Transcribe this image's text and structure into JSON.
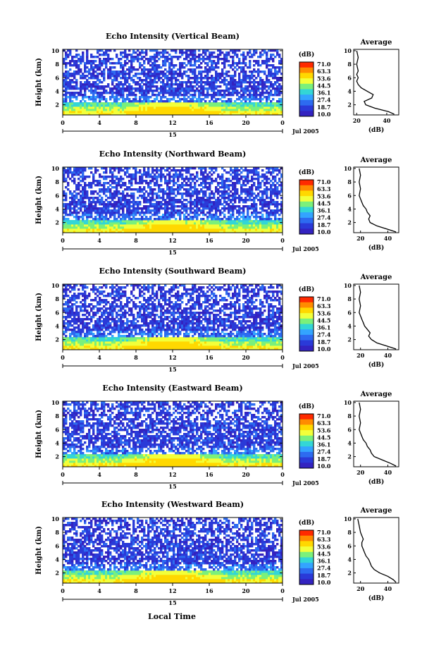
{
  "figure": {
    "xlabel_bottom": "Local Time",
    "date_label": "Jul 2005",
    "day_label": "15"
  },
  "colorbar": {
    "unit": "(dB)",
    "ticks": [
      "71.0",
      "63.3",
      "53.6",
      "44.5",
      "36.1",
      "27.4",
      "18.7",
      "10.0"
    ],
    "colors": [
      "#ff2a00",
      "#ff8c00",
      "#ffd800",
      "#f2ff3a",
      "#7bf07b",
      "#33d6d6",
      "#33a4ff",
      "#2d6bf0",
      "#2a3ad8",
      "#3323c0"
    ]
  },
  "chart_data": [
    {
      "type": "heatmap",
      "title": "Echo Intensity (Vertical Beam)",
      "xlabel": "",
      "ylabel": "Height (km)",
      "xticks": [
        "0",
        "4",
        "8",
        "12",
        "16",
        "20",
        "0"
      ],
      "yticks": [
        "2",
        "4",
        "6",
        "8",
        "10"
      ],
      "xlim": [
        0,
        24
      ],
      "ylim": [
        0.5,
        10.2
      ],
      "z_range": [
        10.0,
        71.0
      ],
      "profile": {
        "title": "Average",
        "xlabel": "(dB)",
        "xticks": [
          "20",
          "40"
        ],
        "xlim": [
          18,
          48
        ],
        "height": [
          0.6,
          1.0,
          1.5,
          2.0,
          2.5,
          3.0,
          3.5,
          4.0,
          4.5,
          5.0,
          5.5,
          6.0,
          6.5,
          7.0,
          8.0,
          9.0,
          10.0
        ],
        "value": [
          45,
          41,
          32,
          26,
          25,
          30,
          31,
          27,
          23,
          21,
          20,
          21,
          20,
          21,
          20,
          21,
          20
        ]
      }
    },
    {
      "type": "heatmap",
      "title": "Echo Intensity (Northward Beam)",
      "xlabel": "",
      "ylabel": "Height (km)",
      "xticks": [
        "0",
        "4",
        "8",
        "12",
        "16",
        "20",
        "0"
      ],
      "yticks": [
        "2",
        "4",
        "6",
        "8",
        "10"
      ],
      "xlim": [
        0,
        24
      ],
      "ylim": [
        0.5,
        10.2
      ],
      "z_range": [
        10.0,
        71.0
      ],
      "profile": {
        "title": "Average",
        "xlabel": "(dB)",
        "xticks": [
          "20",
          "40"
        ],
        "xlim": [
          15,
          48
        ],
        "height": [
          0.6,
          1.0,
          1.5,
          2.0,
          2.5,
          3.0,
          3.5,
          4.0,
          4.5,
          5.0,
          5.5,
          6.0,
          7.0,
          8.0,
          9.0,
          10.0
        ],
        "value": [
          46,
          40,
          32,
          27,
          26,
          27,
          25,
          24,
          22,
          21,
          20,
          19,
          20,
          19,
          20,
          19
        ]
      }
    },
    {
      "type": "heatmap",
      "title": "Echo Intensity (Southward Beam)",
      "xlabel": "",
      "ylabel": "Height (km)",
      "xticks": [
        "0",
        "4",
        "8",
        "12",
        "16",
        "20",
        "0"
      ],
      "yticks": [
        "2",
        "4",
        "6",
        "8",
        "10"
      ],
      "xlim": [
        0,
        24
      ],
      "ylim": [
        0.5,
        10.2
      ],
      "z_range": [
        10.0,
        71.0
      ],
      "profile": {
        "title": "Average",
        "xlabel": "(dB)",
        "xticks": [
          "20",
          "40"
        ],
        "xlim": [
          15,
          48
        ],
        "height": [
          0.6,
          1.0,
          1.5,
          2.0,
          2.5,
          3.0,
          3.5,
          4.0,
          4.5,
          5.0,
          5.5,
          6.0,
          7.0,
          8.0,
          9.0,
          10.0
        ],
        "value": [
          46,
          40,
          32,
          28,
          26,
          27,
          25,
          23,
          22,
          21,
          20,
          19,
          20,
          19,
          20,
          19
        ]
      }
    },
    {
      "type": "heatmap",
      "title": "Echo Intensity (Eastward Beam)",
      "xlabel": "",
      "ylabel": "Height (km)",
      "xticks": [
        "0",
        "4",
        "8",
        "12",
        "16",
        "20",
        "0"
      ],
      "yticks": [
        "2",
        "4",
        "6",
        "8",
        "10"
      ],
      "xlim": [
        0,
        24
      ],
      "ylim": [
        0.5,
        10.2
      ],
      "z_range": [
        10.0,
        71.0
      ],
      "profile": {
        "title": "Average",
        "xlabel": "(dB)",
        "xticks": [
          "20",
          "40"
        ],
        "xlim": [
          15,
          48
        ],
        "height": [
          0.6,
          1.0,
          1.5,
          2.0,
          2.5,
          3.0,
          3.5,
          4.0,
          4.5,
          5.0,
          5.5,
          6.0,
          7.0,
          8.0,
          9.0,
          10.0
        ],
        "value": [
          46,
          42,
          36,
          30,
          28,
          27,
          25,
          24,
          22,
          21,
          20,
          19,
          20,
          19,
          20,
          19
        ]
      }
    },
    {
      "type": "heatmap",
      "title": "Echo Intensity (Westward Beam)",
      "xlabel": "Local Time",
      "ylabel": "Height (km)",
      "xticks": [
        "0",
        "4",
        "8",
        "12",
        "16",
        "20",
        "0"
      ],
      "yticks": [
        "2",
        "4",
        "6",
        "8",
        "10"
      ],
      "xlim": [
        0,
        24
      ],
      "ylim": [
        0.5,
        10.2
      ],
      "z_range": [
        10.0,
        71.0
      ],
      "profile": {
        "title": "Average",
        "xlabel": "(dB)",
        "xticks": [
          "20",
          "40"
        ],
        "xlim": [
          15,
          48
        ],
        "height": [
          0.6,
          1.0,
          1.5,
          2.0,
          2.5,
          3.0,
          3.5,
          4.0,
          4.5,
          5.0,
          5.5,
          6.0,
          6.5,
          7.0,
          8.0,
          9.0,
          10.0
        ],
        "value": [
          46,
          44,
          40,
          34,
          30,
          28,
          27,
          26,
          24,
          23,
          22,
          21,
          21,
          22,
          20,
          19,
          18
        ]
      }
    }
  ]
}
